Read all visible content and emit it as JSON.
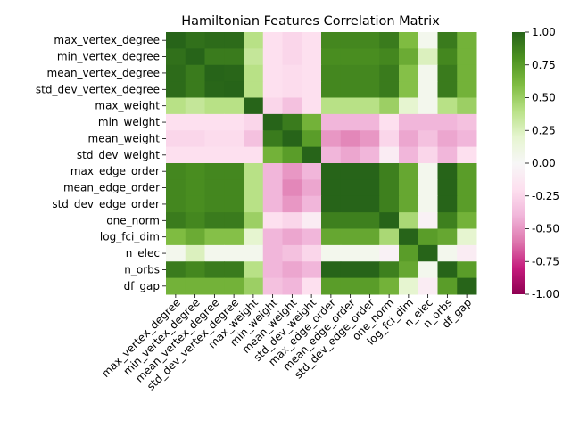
{
  "chart_data": {
    "type": "heatmap",
    "title": "Hamiltonian Features Correlation Matrix",
    "labels": [
      "max_vertex_degree",
      "min_vertex_degree",
      "mean_vertex_degree",
      "std_dev_vertex_degree",
      "max_weight",
      "min_weight",
      "mean_weight",
      "std_dev_weight",
      "max_edge_order",
      "mean_edge_order",
      "std_dev_edge_order",
      "one_norm",
      "log_fci_dim",
      "n_elec",
      "n_orbs",
      "df_gap"
    ],
    "matrix": [
      [
        1.0,
        0.95,
        0.97,
        0.97,
        0.4,
        -0.2,
        -0.25,
        -0.2,
        0.85,
        0.85,
        0.85,
        0.9,
        0.6,
        0.05,
        0.9,
        0.65
      ],
      [
        0.95,
        1.0,
        0.9,
        0.9,
        0.35,
        -0.2,
        -0.25,
        -0.2,
        0.82,
        0.82,
        0.82,
        0.85,
        0.68,
        0.25,
        0.85,
        0.65
      ],
      [
        0.97,
        0.9,
        1.0,
        0.99,
        0.4,
        -0.2,
        -0.22,
        -0.2,
        0.85,
        0.85,
        0.85,
        0.9,
        0.58,
        0.05,
        0.9,
        0.65
      ],
      [
        0.97,
        0.9,
        0.99,
        1.0,
        0.4,
        -0.2,
        -0.22,
        -0.2,
        0.85,
        0.85,
        0.85,
        0.9,
        0.58,
        0.05,
        0.9,
        0.65
      ],
      [
        0.4,
        0.35,
        0.4,
        0.4,
        1.0,
        -0.25,
        -0.35,
        -0.2,
        0.4,
        0.4,
        0.4,
        0.5,
        0.2,
        0.05,
        0.4,
        0.5
      ],
      [
        -0.2,
        -0.2,
        -0.2,
        -0.2,
        -0.25,
        1.0,
        0.9,
        0.65,
        -0.4,
        -0.4,
        -0.4,
        -0.2,
        -0.4,
        -0.4,
        -0.4,
        -0.35
      ],
      [
        -0.25,
        -0.25,
        -0.22,
        -0.22,
        -0.35,
        0.9,
        1.0,
        0.75,
        -0.5,
        -0.55,
        -0.5,
        -0.25,
        -0.45,
        -0.35,
        -0.45,
        -0.4
      ],
      [
        -0.2,
        -0.2,
        -0.2,
        -0.2,
        -0.2,
        0.65,
        0.75,
        1.0,
        -0.4,
        -0.45,
        -0.4,
        -0.1,
        -0.4,
        -0.25,
        -0.4,
        -0.2
      ],
      [
        0.85,
        0.82,
        0.85,
        0.85,
        0.4,
        -0.4,
        -0.5,
        -0.4,
        1.0,
        1.0,
        1.0,
        0.88,
        0.7,
        0.05,
        1.0,
        0.75
      ],
      [
        0.85,
        0.82,
        0.85,
        0.85,
        0.4,
        -0.4,
        -0.55,
        -0.45,
        1.0,
        1.0,
        1.0,
        0.88,
        0.7,
        0.05,
        1.0,
        0.75
      ],
      [
        0.85,
        0.82,
        0.85,
        0.85,
        0.4,
        -0.4,
        -0.5,
        -0.4,
        1.0,
        1.0,
        1.0,
        0.88,
        0.7,
        0.05,
        1.0,
        0.75
      ],
      [
        0.9,
        0.85,
        0.9,
        0.9,
        0.5,
        -0.2,
        -0.25,
        -0.1,
        0.88,
        0.88,
        0.88,
        1.0,
        0.45,
        -0.05,
        0.88,
        0.65
      ],
      [
        0.6,
        0.68,
        0.58,
        0.58,
        0.2,
        -0.4,
        -0.45,
        -0.4,
        0.7,
        0.7,
        0.7,
        0.45,
        1.0,
        0.75,
        0.7,
        0.2
      ],
      [
        0.05,
        0.25,
        0.05,
        0.05,
        0.05,
        -0.4,
        -0.35,
        -0.25,
        0.05,
        0.05,
        0.05,
        -0.05,
        0.75,
        1.0,
        0.05,
        -0.1
      ],
      [
        0.9,
        0.85,
        0.9,
        0.9,
        0.4,
        -0.4,
        -0.45,
        -0.4,
        1.0,
        1.0,
        1.0,
        0.88,
        0.7,
        0.05,
        1.0,
        0.75
      ],
      [
        0.65,
        0.65,
        0.65,
        0.65,
        0.5,
        -0.35,
        -0.4,
        -0.2,
        0.75,
        0.75,
        0.75,
        0.65,
        0.2,
        -0.1,
        0.75,
        1.0
      ]
    ],
    "vmin": -1.0,
    "vmax": 1.0,
    "colormap": "PiYG",
    "colorbar_ticks": [
      "-1.00",
      "-0.75",
      "-0.50",
      "-0.25",
      "0.00",
      "0.25",
      "0.50",
      "0.75",
      "1.00"
    ]
  }
}
